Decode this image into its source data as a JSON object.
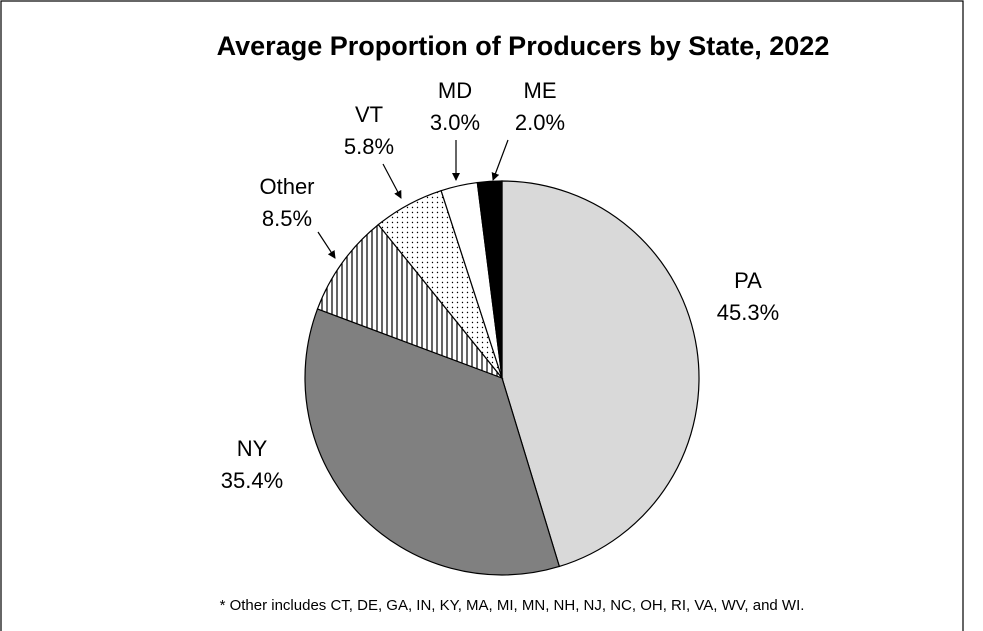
{
  "chart_data": {
    "type": "pie",
    "title": "Average Proportion of Producers by State, 2022",
    "categories": [
      "PA",
      "NY",
      "Other",
      "VT",
      "MD",
      "ME"
    ],
    "values": [
      45.3,
      35.4,
      8.5,
      5.8,
      3.0,
      2.0
    ],
    "value_labels": [
      "45.3%",
      "35.4%",
      "8.5%",
      "5.8%",
      "3.0%",
      "2.0%"
    ],
    "colors": [
      "#d9d9d9",
      "#808080",
      "vertical-lines",
      "dots",
      "#ffffff",
      "#000000"
    ],
    "note": "* Other includes  CT, DE, GA, IN, KY, MA, MI, MN, NH, NJ, NC, OH, RI, VA, WV, and WI."
  }
}
